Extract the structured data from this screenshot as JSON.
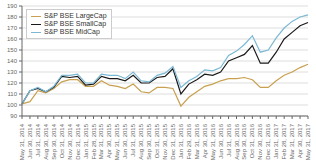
{
  "chart_data": {
    "type": "line",
    "categories": [
      "May 31, 2014",
      "Jun 30, 2014",
      "Jul 31, 2014",
      "Aug 30, 2014",
      "Sep 30, 2014",
      "Oct 31, 2014",
      "Nov 30, 2014",
      "Dec 31, 2014",
      "Jan 31, 2015",
      "Feb 28, 2015",
      "Mar 31, 2015",
      "Apr 30, 2015",
      "May 31, 2015",
      "Jun 30, 2015",
      "Jul 31, 2015",
      "Aug 30, 2015",
      "Sep 30, 2015",
      "Oct 31, 2015",
      "Nov 30, 2015",
      "Dec 31, 2015",
      "Jan 31, 2016",
      "Feb 29, 2016",
      "Mar 31, 2016",
      "Apr 30, 2016",
      "May 31, 2016",
      "Jun 30, 2016",
      "Jul 31, 2016",
      "Aug 30, 2016",
      "Sep 30, 2016",
      "Oct 31, 2016",
      "Nov 30, 2016",
      "Dec 31, 2016",
      "Jan 31, 2017",
      "Feb 28, 2017",
      "Mar 31, 2017",
      "Apr 30, 2017",
      "May 31, 2017"
    ],
    "series": [
      {
        "name": "S&P BSE LargeCap",
        "color": "#c8a050",
        "values": [
          101,
          103,
          113,
          111,
          115,
          121,
          123,
          123,
          117,
          117,
          122,
          118,
          117,
          115,
          119,
          112,
          111,
          116,
          116,
          115,
          99,
          107,
          112,
          117,
          119,
          122,
          124,
          124,
          125,
          123,
          116,
          116,
          122,
          127,
          130,
          134,
          137
        ]
      },
      {
        "name": "S&P BSE SmallCap",
        "color": "#1a1a1a",
        "values": [
          101,
          113,
          115,
          112,
          116,
          126,
          125,
          126,
          118,
          119,
          126,
          124,
          124,
          122,
          127,
          120,
          120,
          125,
          126,
          133,
          110,
          119,
          123,
          128,
          127,
          130,
          140,
          143,
          146,
          154,
          138,
          138,
          148,
          160,
          166,
          172,
          175
        ]
      },
      {
        "name": "S&P BSE MidCap",
        "color": "#7ab8d4",
        "values": [
          101,
          113,
          116,
          112,
          117,
          127,
          127,
          128,
          120,
          120,
          128,
          127,
          127,
          124,
          130,
          122,
          121,
          127,
          129,
          135,
          116,
          122,
          126,
          132,
          131,
          134,
          145,
          149,
          155,
          163,
          148,
          150,
          161,
          170,
          176,
          180,
          182
        ]
      }
    ],
    "ylim": [
      90,
      190
    ],
    "yticks": [
      90,
      100,
      110,
      120,
      130,
      140,
      150,
      160,
      170,
      180,
      190
    ],
    "grid": true,
    "legend": "upper left"
  }
}
